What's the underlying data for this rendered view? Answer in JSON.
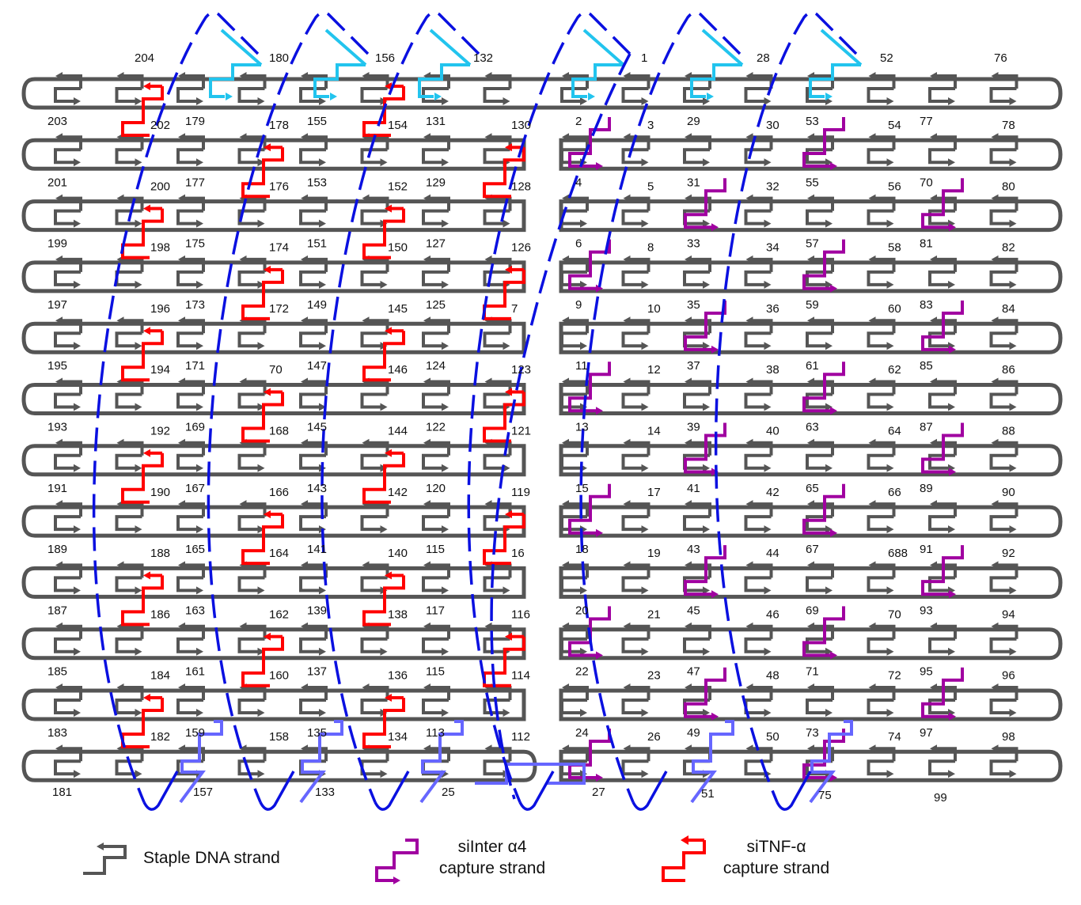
{
  "colors": {
    "scaffold_gray": "#555555",
    "staple_gray": "#555555",
    "sitnf_red": "#ff0000",
    "siinter_purple": "#a000a0",
    "cyan_strand": "#22c4ee",
    "blue_dashed": "#0a10e0",
    "light_blue": "#6666ff"
  },
  "rows": 11,
  "top_labels": [
    "204",
    "180",
    "156",
    "132",
    "1",
    "28",
    "52",
    "76"
  ],
  "row_labels": [
    [
      "203",
      "202",
      "179",
      "178",
      "155",
      "154",
      "131",
      "130",
      "2",
      "3",
      "29",
      "30",
      "53",
      "54",
      "77",
      "78"
    ],
    [
      "201",
      "200",
      "177",
      "176",
      "153",
      "152",
      "129",
      "128",
      "4",
      "5",
      "31",
      "32",
      "55",
      "56",
      "70",
      "80"
    ],
    [
      "199",
      "198",
      "175",
      "174",
      "151",
      "150",
      "127",
      "126",
      "6",
      "8",
      "33",
      "34",
      "57",
      "58",
      "81",
      "82"
    ],
    [
      "197",
      "196",
      "173",
      "172",
      "149",
      "145",
      "125",
      "7",
      "9",
      "10",
      "35",
      "36",
      "59",
      "60",
      "83",
      "84"
    ],
    [
      "195",
      "194",
      "171",
      "70",
      "147",
      "146",
      "124",
      "123",
      "11",
      "12",
      "37",
      "38",
      "61",
      "62",
      "85",
      "86"
    ],
    [
      "193",
      "192",
      "169",
      "168",
      "145",
      "144",
      "122",
      "121",
      "13",
      "14",
      "39",
      "40",
      "63",
      "64",
      "87",
      "88"
    ],
    [
      "191",
      "190",
      "167",
      "166",
      "143",
      "142",
      "120",
      "119",
      "15",
      "17",
      "41",
      "42",
      "65",
      "66",
      "89",
      "90"
    ],
    [
      "189",
      "188",
      "165",
      "164",
      "141",
      "140",
      "115",
      "16",
      "18",
      "19",
      "43",
      "44",
      "67",
      "688",
      "91",
      "92"
    ],
    [
      "187",
      "186",
      "163",
      "162",
      "139",
      "138",
      "117",
      "116",
      "20",
      "21",
      "45",
      "46",
      "69",
      "70",
      "93",
      "94"
    ],
    [
      "185",
      "184",
      "161",
      "160",
      "137",
      "136",
      "115",
      "114",
      "22",
      "23",
      "47",
      "48",
      "71",
      "72",
      "95",
      "96"
    ],
    [
      "183",
      "182",
      "159",
      "158",
      "135",
      "134",
      "113",
      "112",
      "24",
      "26",
      "49",
      "50",
      "73",
      "74",
      "97",
      "98"
    ]
  ],
  "bottom_labels": [
    "181",
    "157",
    "133",
    "25",
    "27",
    "51",
    "75",
    "99"
  ],
  "legend": {
    "staple": "Staple DNA strand",
    "siinter_line1": "siInter α4",
    "siinter_line2": "capture strand",
    "sitnf_line1": "siTNF-α",
    "sitnf_line2": "capture strand"
  }
}
